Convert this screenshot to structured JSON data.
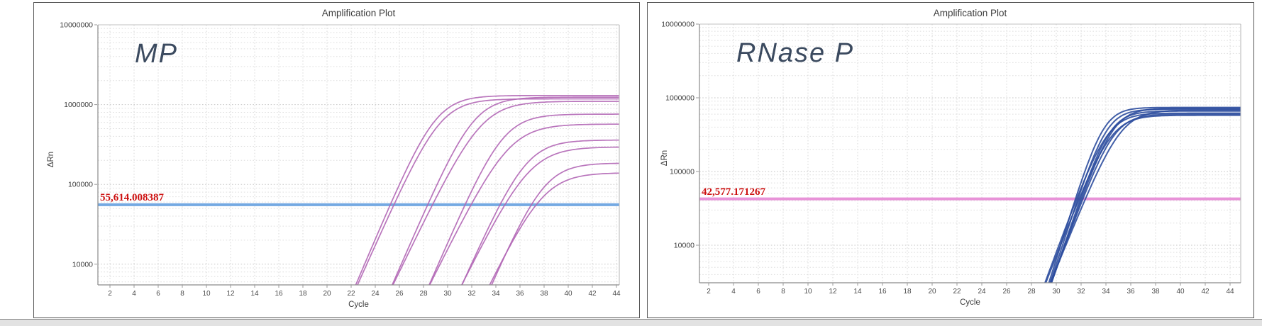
{
  "page": {
    "background": "#ffffff",
    "panel_border_color": "#565656",
    "footer_strip_color": "#e2e2e2"
  },
  "chart_data": [
    {
      "type": "line",
      "title": "Amplification Plot",
      "target_label": "MP",
      "xlabel": "Cycle",
      "ylabel": "ΔRn",
      "x_axis": {
        "ticks": [
          2,
          4,
          6,
          8,
          10,
          12,
          14,
          16,
          18,
          20,
          22,
          24,
          26,
          28,
          30,
          32,
          34,
          36,
          38,
          40,
          42,
          44
        ],
        "min": 1,
        "max": 44.3
      },
      "y_axis": {
        "scale": "log",
        "tick_labels": [
          "10000000",
          "1000000",
          "100000",
          "10000"
        ],
        "tick_values": [
          10000000,
          1000000,
          100000,
          10000
        ],
        "grid": true
      },
      "threshold": {
        "value": 55614.008387,
        "label": "55,614.008387",
        "line_color": "#74a9e2",
        "text_color": "#cd1111"
      },
      "curve_color": "#b166b5",
      "series": [
        {
          "name": "curve_1",
          "ct": 25.25,
          "plateau_dRn": 1300000,
          "k": 0.82
        },
        {
          "name": "curve_2",
          "ct": 25.55,
          "plateau_dRn": 1180000,
          "k": 0.78
        },
        {
          "name": "curve_3",
          "ct": 28.35,
          "plateau_dRn": 1240000,
          "k": 0.8
        },
        {
          "name": "curve_4",
          "ct": 28.75,
          "plateau_dRn": 1100000,
          "k": 0.72
        },
        {
          "name": "curve_5",
          "ct": 31.45,
          "plateau_dRn": 760000,
          "k": 0.8
        },
        {
          "name": "curve_6",
          "ct": 31.95,
          "plateau_dRn": 570000,
          "k": 0.7
        },
        {
          "name": "curve_7",
          "ct": 34.35,
          "plateau_dRn": 360000,
          "k": 0.78
        },
        {
          "name": "curve_8",
          "ct": 34.75,
          "plateau_dRn": 295000,
          "k": 0.7
        },
        {
          "name": "curve_9",
          "ct": 36.95,
          "plateau_dRn": 185000,
          "k": 0.8
        },
        {
          "name": "curve_10",
          "ct": 37.35,
          "plateau_dRn": 140000,
          "k": 0.72
        }
      ]
    },
    {
      "type": "line",
      "title": "Amplification Plot",
      "target_label": "RNase P",
      "xlabel": "Cycle",
      "ylabel": "ΔRn",
      "x_axis": {
        "ticks": [
          2,
          4,
          6,
          8,
          10,
          12,
          14,
          16,
          18,
          20,
          22,
          24,
          26,
          28,
          30,
          32,
          34,
          36,
          38,
          40,
          42,
          44
        ],
        "min": 1,
        "max": 44.9
      },
      "y_axis": {
        "scale": "log",
        "tick_labels": [
          "10000000",
          "1000000",
          "100000",
          "10000"
        ],
        "tick_values": [
          10000000,
          1000000,
          100000,
          10000
        ],
        "grid": true
      },
      "threshold": {
        "value": 42577.171267,
        "label": "42,577.171267",
        "line_color": "#e893d8",
        "text_color": "#cd1111"
      },
      "curve_color": "#2d4e9e",
      "series": [
        {
          "name": "curve_1",
          "ct": 31.55,
          "plateau_dRn": 740000,
          "k": 1.25
        },
        {
          "name": "curve_2",
          "ct": 31.65,
          "plateau_dRn": 620000,
          "k": 1.05
        },
        {
          "name": "curve_3",
          "ct": 31.75,
          "plateau_dRn": 700000,
          "k": 1.2
        },
        {
          "name": "curve_4",
          "ct": 31.85,
          "plateau_dRn": 580000,
          "k": 1.0
        },
        {
          "name": "curve_5",
          "ct": 31.95,
          "plateau_dRn": 660000,
          "k": 1.15
        },
        {
          "name": "curve_6",
          "ct": 32.05,
          "plateau_dRn": 720000,
          "k": 1.1
        },
        {
          "name": "curve_7",
          "ct": 32.15,
          "plateau_dRn": 600000,
          "k": 1.05
        },
        {
          "name": "curve_8",
          "ct": 32.35,
          "plateau_dRn": 680000,
          "k": 0.95
        }
      ]
    }
  ]
}
